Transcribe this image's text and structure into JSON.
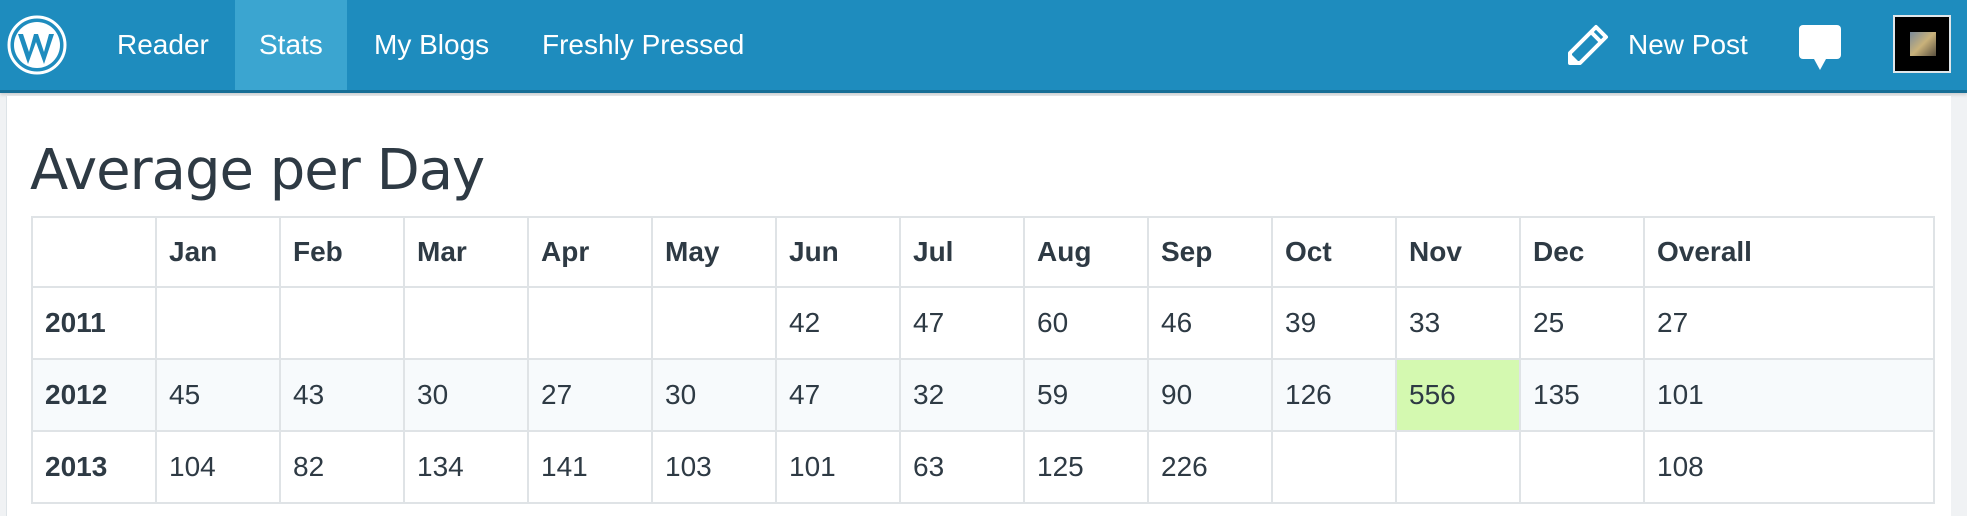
{
  "nav": {
    "logo": "wordpress-logo",
    "items": [
      {
        "label": "Reader",
        "active": false
      },
      {
        "label": "Stats",
        "active": true
      },
      {
        "label": "My Blogs",
        "active": false
      },
      {
        "label": "Freshly Pressed",
        "active": false
      }
    ],
    "new_post_label": "New Post",
    "colors": {
      "bar": "#1e8cbe",
      "active": "#3ba5d0"
    }
  },
  "main": {
    "title": "Average per Day",
    "table": {
      "headers": [
        "",
        "Jan",
        "Feb",
        "Mar",
        "Apr",
        "May",
        "Jun",
        "Jul",
        "Aug",
        "Sep",
        "Oct",
        "Nov",
        "Dec",
        "Overall"
      ],
      "rows": [
        {
          "year": "2011",
          "values": [
            "",
            "",
            "",
            "",
            "",
            "42",
            "47",
            "60",
            "46",
            "39",
            "33",
            "25",
            "27"
          ]
        },
        {
          "year": "2012",
          "values": [
            "45",
            "43",
            "30",
            "27",
            "30",
            "47",
            "32",
            "59",
            "90",
            "126",
            "556",
            "135",
            "101"
          ],
          "highlight_index": 10
        },
        {
          "year": "2013",
          "values": [
            "104",
            "82",
            "134",
            "141",
            "103",
            "101",
            "63",
            "125",
            "226",
            "",
            "",
            "",
            "108"
          ]
        }
      ],
      "highlight_color": "#d4f9b0"
    }
  }
}
